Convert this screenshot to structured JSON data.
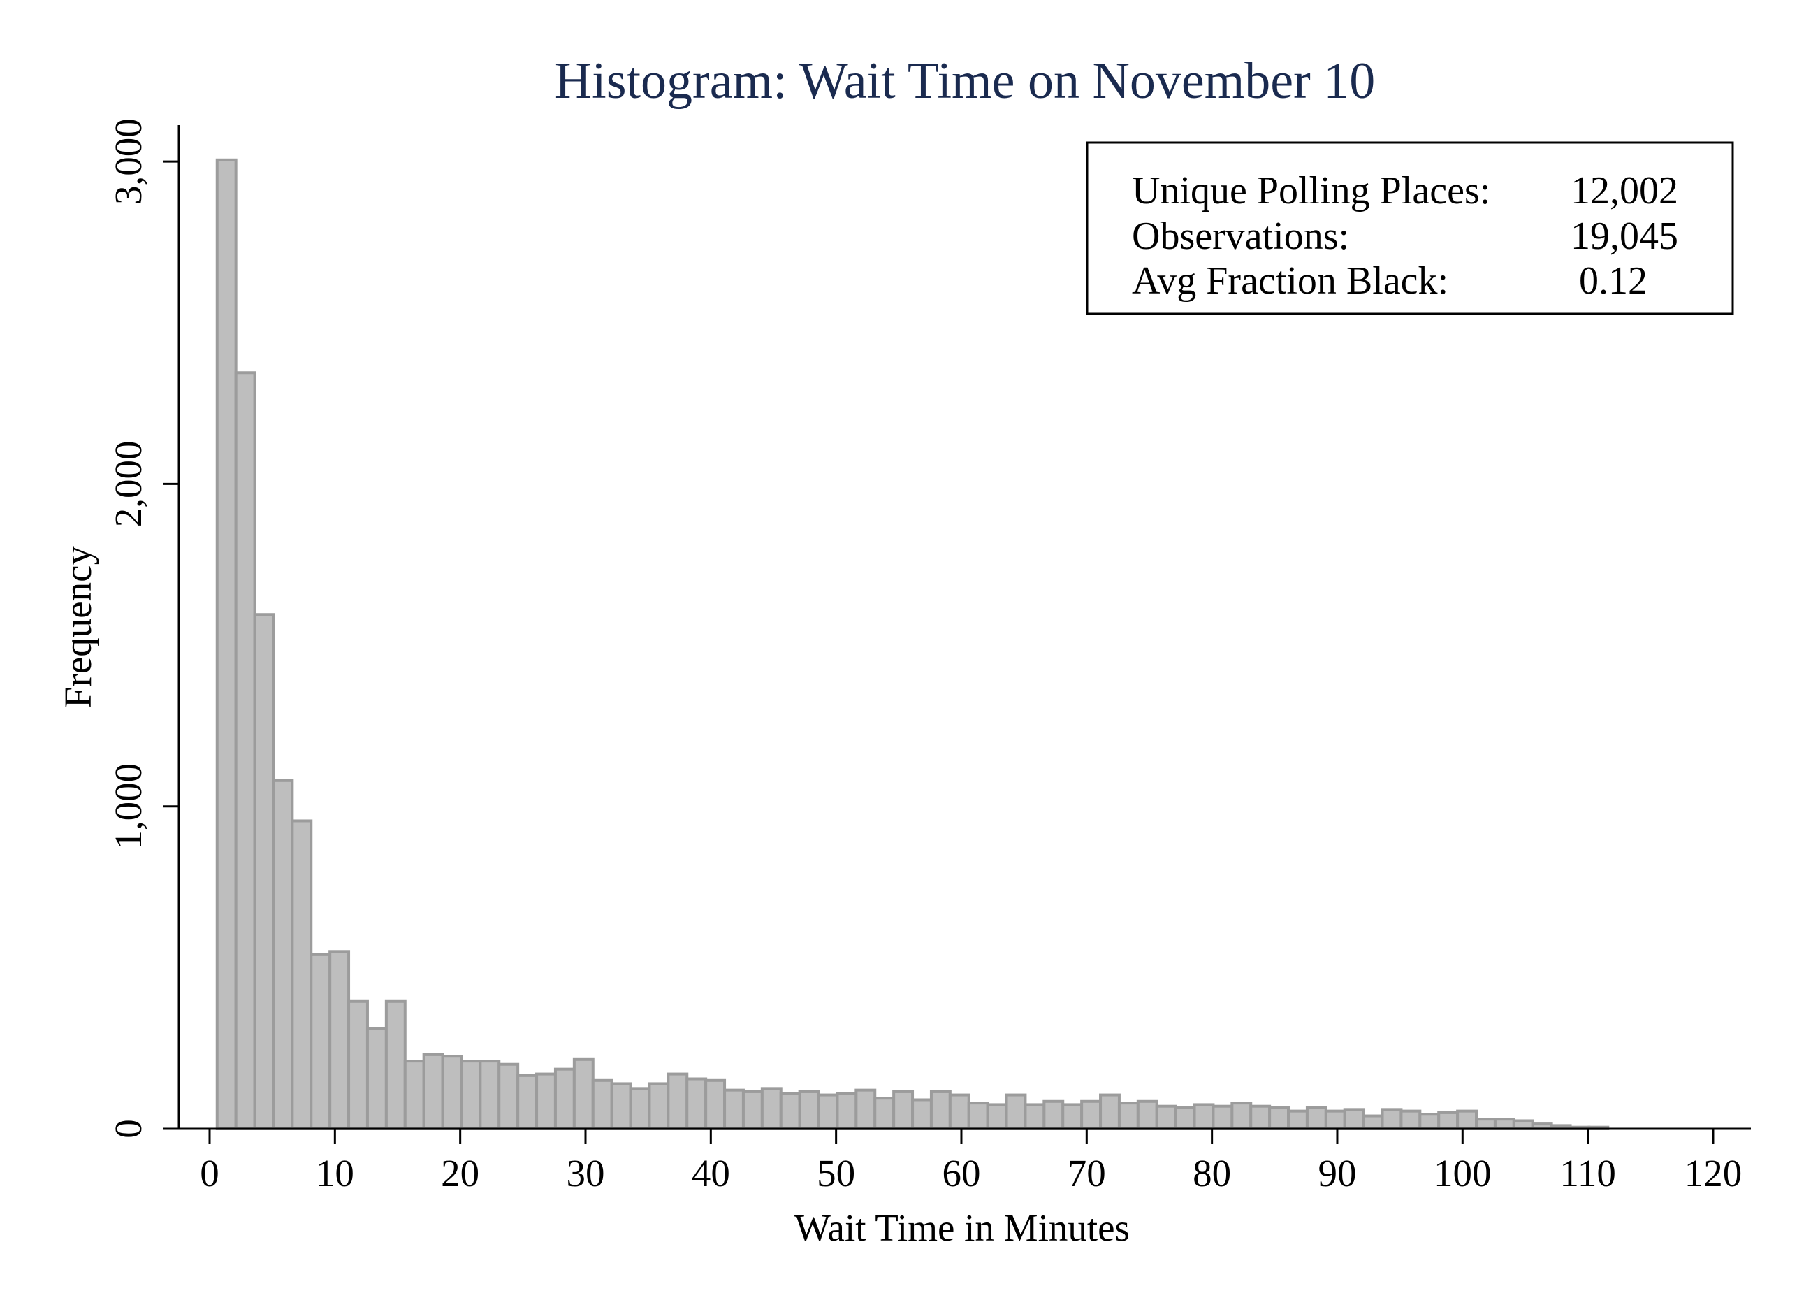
{
  "chart_data": {
    "type": "bar",
    "title": "Histogram: Wait Time on November 10",
    "xlabel": "Wait Time in Minutes",
    "ylabel": "Frequency",
    "xlim": [
      0,
      122
    ],
    "ylim": [
      0,
      3150
    ],
    "xticks": [
      0,
      10,
      20,
      30,
      40,
      50,
      60,
      70,
      80,
      90,
      100,
      110,
      120
    ],
    "yticks": [
      0,
      1000,
      2000,
      3000
    ],
    "ytick_labels": [
      "0",
      "1,000",
      "2,000",
      "3,000"
    ],
    "grid": false,
    "legend": "none",
    "bin_start": 0.6,
    "bin_width": 1.5,
    "values": [
      3005,
      2345,
      1595,
      1080,
      955,
      540,
      550,
      395,
      310,
      395,
      210,
      230,
      225,
      210,
      210,
      200,
      165,
      170,
      185,
      215,
      150,
      140,
      125,
      140,
      170,
      155,
      150,
      120,
      115,
      125,
      110,
      115,
      105,
      110,
      120,
      95,
      115,
      90,
      115,
      105,
      80,
      75,
      105,
      75,
      85,
      75,
      85,
      105,
      80,
      85,
      70,
      65,
      75,
      70,
      80,
      70,
      65,
      55,
      65,
      55,
      60,
      40,
      60,
      55,
      45,
      50,
      55,
      30,
      30,
      25,
      15,
      10,
      5,
      5
    ],
    "colors": {
      "bar_fill": "#bebebe",
      "bar_stroke": "#9c9c9c",
      "title": "#1a2a4f"
    },
    "stats_box": {
      "position": "top-right",
      "rows": [
        {
          "label": "Unique Polling Places:",
          "value": "12,002"
        },
        {
          "label": "Observations:",
          "value": "19,045"
        },
        {
          "label": "Avg Fraction Black:",
          "value": "0.12"
        }
      ]
    }
  }
}
